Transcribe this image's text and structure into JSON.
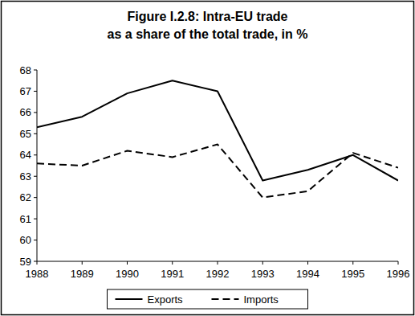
{
  "chart_data": {
    "type": "line",
    "title": "Figure I.2.8: Intra-EU trade",
    "subtitle": "as a share of the total trade, in %",
    "x": [
      1988,
      1989,
      1990,
      1991,
      1992,
      1993,
      1994,
      1995,
      1996
    ],
    "xlim": [
      1988,
      1996
    ],
    "xticks": [
      1988,
      1989,
      1990,
      1991,
      1992,
      1993,
      1994,
      1995,
      1996
    ],
    "ylim": [
      59,
      68
    ],
    "yticks": [
      59,
      60,
      61,
      62,
      63,
      64,
      65,
      66,
      67,
      68
    ],
    "series": [
      {
        "name": "Exports",
        "color": "#000000",
        "line_style": "solid",
        "values": [
          65.3,
          65.8,
          66.9,
          67.5,
          67.0,
          62.8,
          63.3,
          64.0,
          62.8
        ]
      },
      {
        "name": "Imports",
        "color": "#000000",
        "line_style": "dashed",
        "values": [
          63.6,
          63.5,
          64.2,
          63.9,
          64.5,
          62.0,
          62.3,
          64.1,
          63.4
        ]
      }
    ],
    "legend": "bottom",
    "grid": false
  }
}
